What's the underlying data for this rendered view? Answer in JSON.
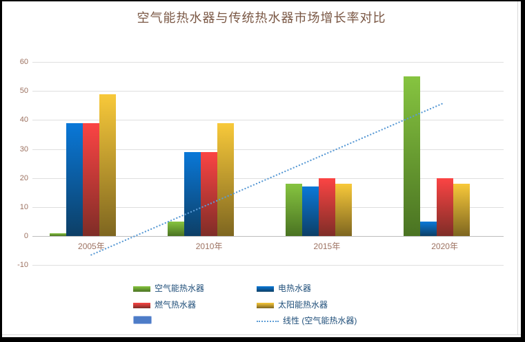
{
  "frame_color": "#000000",
  "background_color": "#ffffff",
  "chart_data": {
    "type": "bar",
    "title": "空气能热水器与传统热水器市场增长率对比",
    "categories": [
      "2005年",
      "2010年",
      "2015年",
      "2020年"
    ],
    "series": [
      {
        "name": "空气能热水器",
        "values": [
          1,
          5,
          18,
          55
        ],
        "color_top": "#86c440",
        "color_bottom": "#4a7322",
        "legend_color": "#76b93c"
      },
      {
        "name": "电热水器",
        "values": [
          39,
          29,
          17,
          5
        ],
        "color_top": "#0a78d8",
        "color_bottom": "#0d3f66",
        "legend_color": "#0b72c9"
      },
      {
        "name": "燃气热水器",
        "values": [
          39,
          29,
          20,
          20
        ],
        "color_top": "#fb4444",
        "color_bottom": "#7f2d27",
        "legend_color": "#e03c3c"
      },
      {
        "name": "太阳能热水器",
        "values": [
          49,
          39,
          18,
          18
        ],
        "color_top": "#f8c93a",
        "color_bottom": "#7e6620",
        "legend_color": "#e9ba2f"
      },
      {
        "name": "",
        "values": [
          null,
          null,
          null,
          null
        ],
        "color_top": "#4d7cc7",
        "color_bottom": "#4d7cc7",
        "legend_color": "#4d7cc7"
      }
    ],
    "trendline": {
      "label": "线性 (空气能热水器)",
      "based_on_series": "空气能热水器",
      "start_value": -6.5,
      "end_value": 46,
      "color": "#5b9bd5",
      "style": "dotted"
    },
    "y_ticks": [
      60,
      50,
      40,
      30,
      20,
      10,
      0,
      -10
    ],
    "ylim": [
      -10,
      60
    ],
    "grid": true,
    "legend_position": "bottom"
  },
  "legend": {
    "rows": [
      [
        {
          "label": "空气能热水器",
          "swatch": "bar",
          "series_index": 0
        },
        {
          "label": "电热水器",
          "swatch": "bar",
          "series_index": 1
        }
      ],
      [
        {
          "label": "燃气热水器",
          "swatch": "bar",
          "series_index": 2
        },
        {
          "label": "太阳能热水器",
          "swatch": "bar",
          "series_index": 3
        }
      ],
      [
        {
          "label": "",
          "swatch": "blank",
          "series_index": 4
        },
        {
          "label": "线性 (空气能热水器)",
          "swatch": "dotted-line",
          "series_index": -1
        }
      ]
    ]
  },
  "colors": {
    "title_text": "#7a5744",
    "axis_text": "#9c7160",
    "legend_text": "#1f4e79",
    "gridline": "#dedede",
    "axis_line": "#bdbdbd",
    "chart_border": "#d9d9d9",
    "trendline": "#5b9bd5"
  }
}
